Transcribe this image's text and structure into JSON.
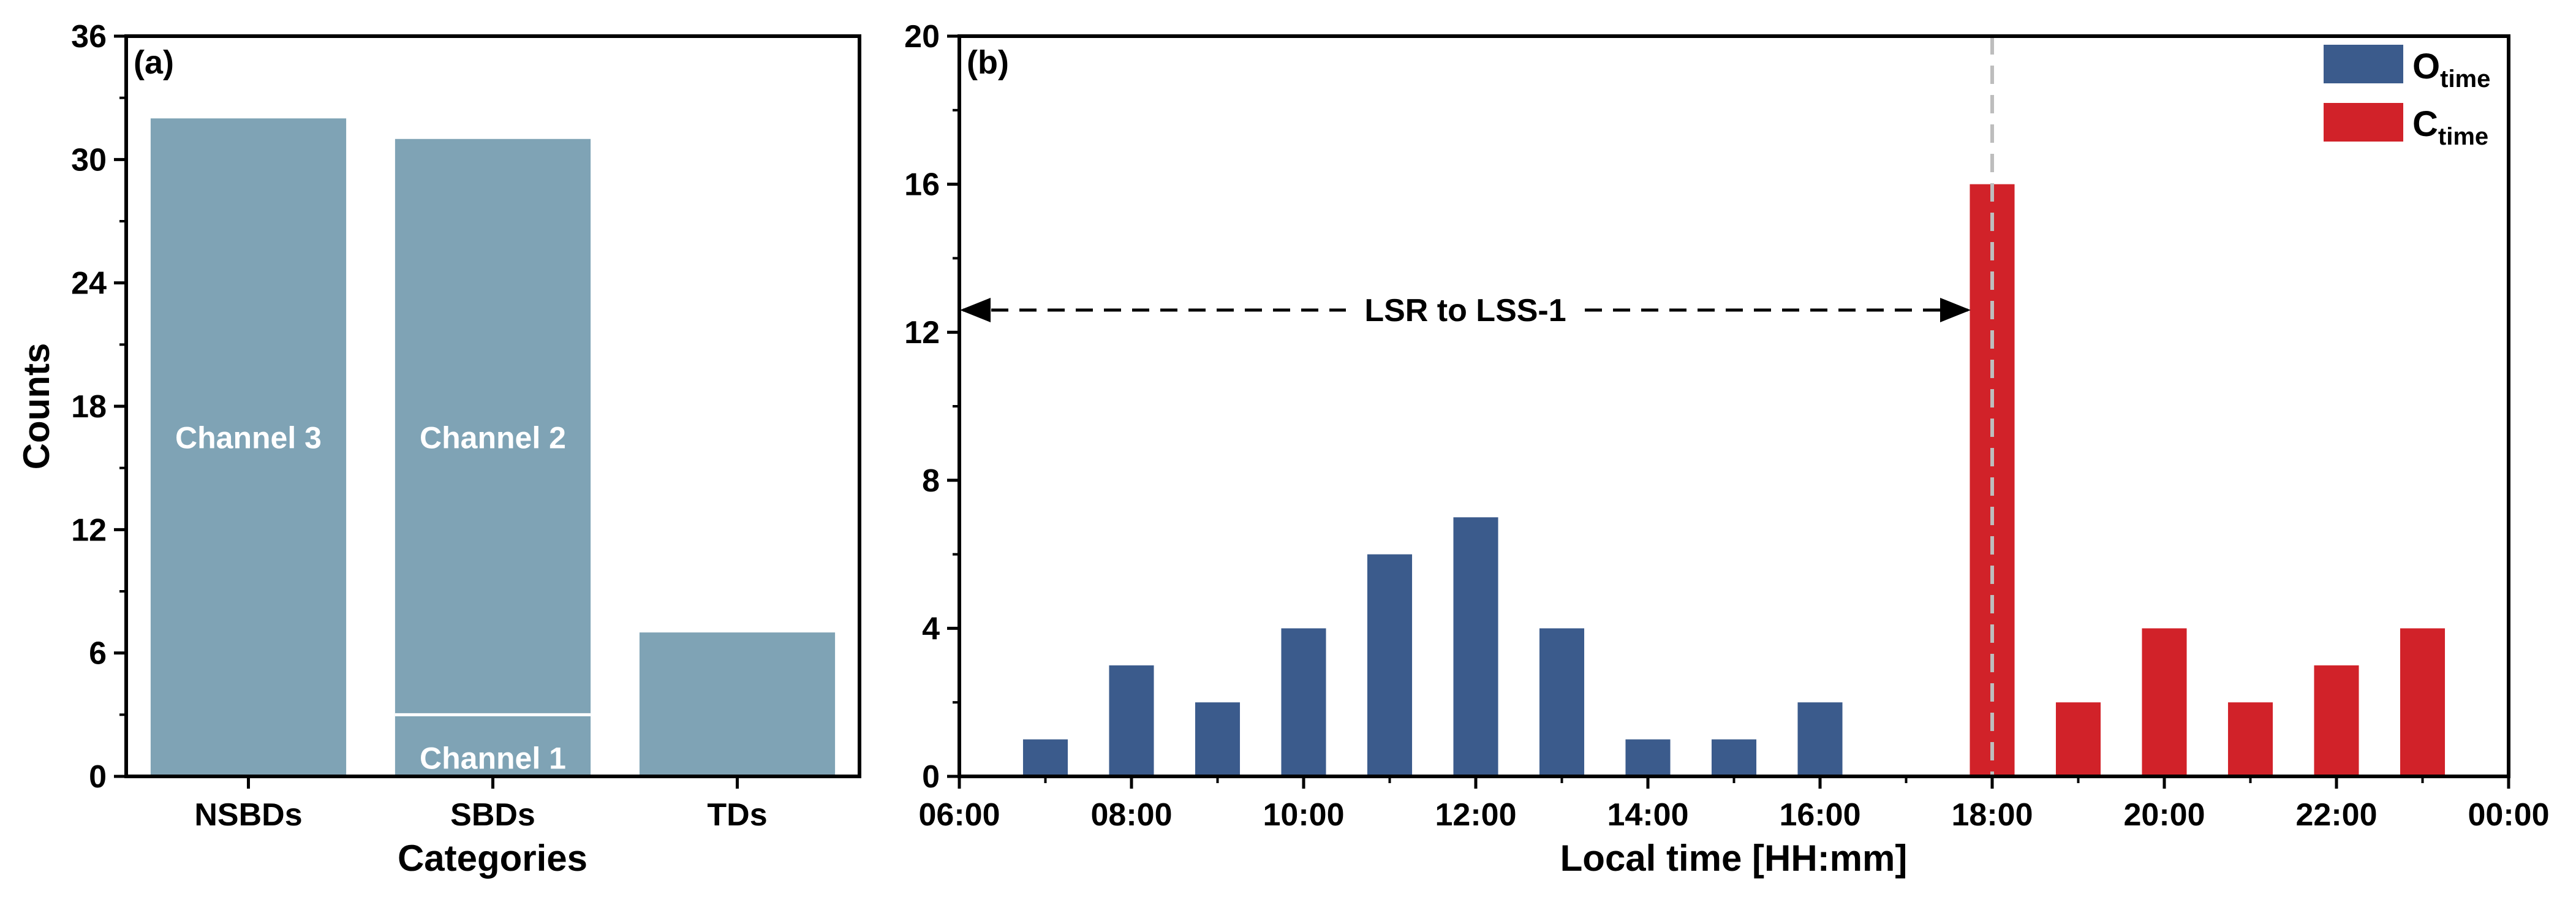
{
  "chart_data": [
    {
      "type": "bar",
      "panel_tag": "(a)",
      "xlabel": "Categories",
      "ylabel": "Counts",
      "ylim": [
        0,
        36
      ],
      "yticks": [
        0,
        6,
        12,
        18,
        24,
        30,
        36
      ],
      "ytick_labels": [
        "0",
        "6",
        "12",
        "18",
        "24",
        "30",
        "36"
      ],
      "categories": [
        "NSBDs",
        "SBDs",
        "TDs"
      ],
      "bars": [
        {
          "category": "NSBDs",
          "segments": [
            {
              "value": 32,
              "label": "Channel 3"
            }
          ]
        },
        {
          "category": "SBDs",
          "segments": [
            {
              "value": 3,
              "label": "Channel 1"
            },
            {
              "value": 28,
              "label": "Channel 2"
            }
          ]
        },
        {
          "category": "TDs",
          "segments": [
            {
              "value": 7,
              "label": ""
            }
          ]
        }
      ],
      "color": "#7fa3b5",
      "grid": false
    },
    {
      "type": "bar",
      "panel_tag": "(b)",
      "xlabel": "Local time [HH:mm]",
      "ylabel": "",
      "xlim": [
        6,
        24
      ],
      "ylim": [
        0,
        20
      ],
      "yticks": [
        0,
        4,
        8,
        12,
        16,
        20
      ],
      "ytick_labels": [
        "0",
        "4",
        "8",
        "12",
        "16",
        "20"
      ],
      "xticks": [
        6,
        8,
        10,
        12,
        14,
        16,
        18,
        20,
        22,
        24
      ],
      "xtick_labels": [
        "06:00",
        "08:00",
        "10:00",
        "12:00",
        "14:00",
        "16:00",
        "18:00",
        "20:00",
        "22:00",
        "00:00"
      ],
      "series": [
        {
          "name": "O",
          "name_subscript": "time",
          "color": "#3b5b8c",
          "x": [
            7,
            8,
            9,
            10,
            11,
            12,
            13,
            14,
            15,
            16
          ],
          "values": [
            1,
            3,
            2,
            4,
            6,
            7,
            4,
            1,
            1,
            2
          ]
        },
        {
          "name": "C",
          "name_subscript": "time",
          "color": "#d12229",
          "x": [
            18,
            19,
            20,
            21,
            22,
            23
          ],
          "values": [
            16,
            2,
            4,
            2,
            3,
            4
          ]
        }
      ],
      "legend_position": "top-right",
      "reference_line": {
        "x": 18,
        "style": "dashed",
        "color": "#bdbdbd"
      },
      "annotation": {
        "text": "LSR to LSS-1",
        "x_start": 6,
        "x_end": 18,
        "y": 12.6
      },
      "grid": false
    }
  ]
}
